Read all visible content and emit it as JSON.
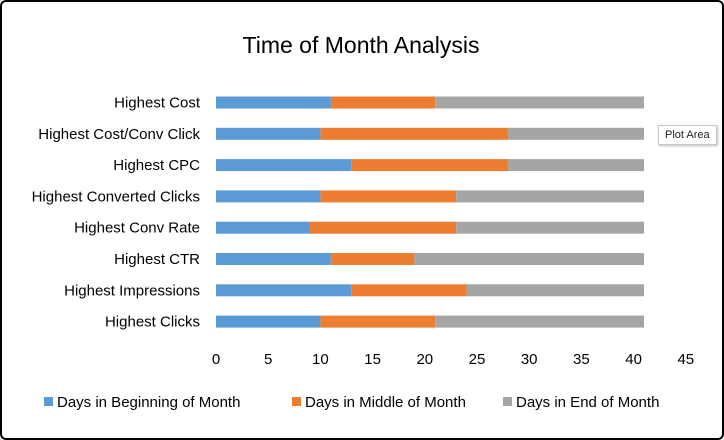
{
  "chart_data": {
    "type": "bar",
    "orientation": "horizontal",
    "stacked": true,
    "title": "Time of Month Analysis",
    "categories": [
      "Highest Cost",
      "Highest Cost/Conv Click",
      "Highest CPC",
      "Highest Converted Clicks",
      "Highest Conv Rate",
      "Highest CTR",
      "Highest Impressions",
      "Highest Clicks"
    ],
    "series": [
      {
        "name": "Days in Beginning of Month",
        "color": "#5b9bd5",
        "values": [
          11,
          10,
          13,
          10,
          9,
          11,
          13,
          10
        ]
      },
      {
        "name": "Days in Middle of Month",
        "color": "#ed7d31",
        "values": [
          10,
          18,
          15,
          13,
          14,
          8,
          11,
          11
        ]
      },
      {
        "name": "Days in End of Month",
        "color": "#a5a5a5",
        "values": [
          20,
          13,
          13,
          18,
          18,
          22,
          17,
          20
        ]
      }
    ],
    "xlim": [
      0,
      45
    ],
    "xticks": [
      "0",
      "5",
      "10",
      "15",
      "20",
      "25",
      "30",
      "35",
      "40",
      "45"
    ],
    "grid": false,
    "legend_position": "bottom"
  },
  "tooltip": {
    "text": "Plot Area"
  }
}
